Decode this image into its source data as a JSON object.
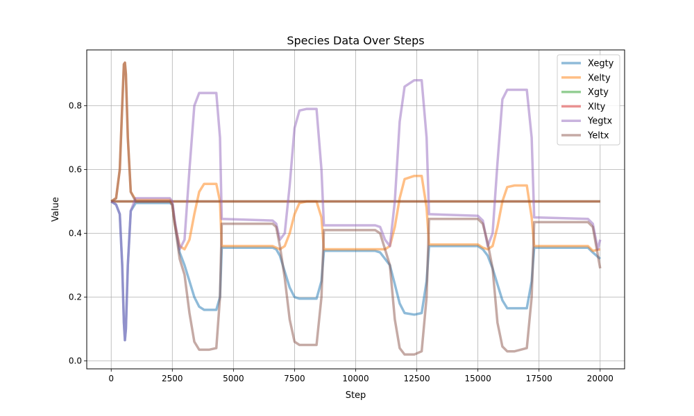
{
  "chart_data": {
    "type": "line",
    "title": "Species Data Over Steps",
    "xlabel": "Step",
    "ylabel": "Value",
    "xlim": [
      -1000,
      21000
    ],
    "ylim": [
      -0.025,
      0.975
    ],
    "xticks": [
      0,
      2500,
      5000,
      7500,
      10000,
      12500,
      15000,
      17500,
      20000
    ],
    "xtick_labels": [
      "0",
      "2500",
      "5000",
      "7500",
      "10000",
      "12500",
      "15000",
      "17500",
      "20000"
    ],
    "yticks": [
      0.0,
      0.2,
      0.4,
      0.6,
      0.8
    ],
    "ytick_labels": [
      "0.0",
      "0.2",
      "0.4",
      "0.6",
      "0.8"
    ],
    "grid": true,
    "legend_position": "upper right",
    "series": [
      {
        "name": "Xegty",
        "color": "#1f77b4",
        "x": [
          0,
          200,
          350,
          450,
          520,
          560,
          600,
          680,
          800,
          1000,
          2400,
          2500,
          2600,
          2800,
          3000,
          3200,
          3400,
          3600,
          3800,
          4000,
          4300,
          4450,
          4520,
          6600,
          6750,
          6900,
          7100,
          7300,
          7500,
          7700,
          8000,
          8400,
          8600,
          8700,
          10800,
          11000,
          11200,
          11400,
          11600,
          11800,
          12000,
          12400,
          12700,
          12900,
          13000,
          15000,
          15200,
          15400,
          15600,
          15800,
          16000,
          16200,
          16500,
          17000,
          17200,
          17300,
          19500,
          19700,
          20000
        ],
        "y": [
          0.5,
          0.49,
          0.46,
          0.3,
          0.12,
          0.065,
          0.1,
          0.3,
          0.47,
          0.495,
          0.495,
          0.49,
          0.43,
          0.34,
          0.3,
          0.25,
          0.2,
          0.17,
          0.16,
          0.16,
          0.16,
          0.2,
          0.355,
          0.355,
          0.35,
          0.33,
          0.28,
          0.23,
          0.2,
          0.195,
          0.195,
          0.195,
          0.25,
          0.345,
          0.345,
          0.34,
          0.32,
          0.3,
          0.24,
          0.18,
          0.15,
          0.145,
          0.15,
          0.25,
          0.36,
          0.36,
          0.35,
          0.33,
          0.29,
          0.24,
          0.19,
          0.165,
          0.165,
          0.165,
          0.25,
          0.355,
          0.355,
          0.34,
          0.32
        ]
      },
      {
        "name": "Xelty",
        "color": "#ff7f0e",
        "x": [
          0,
          200,
          350,
          450,
          520,
          560,
          600,
          680,
          800,
          1000,
          2400,
          2500,
          2600,
          2800,
          3000,
          3200,
          3400,
          3600,
          3800,
          4000,
          4300,
          4450,
          4520,
          6600,
          6750,
          6900,
          7100,
          7300,
          7500,
          7700,
          8000,
          8400,
          8600,
          8700,
          10800,
          11000,
          11200,
          11400,
          11600,
          11800,
          12000,
          12400,
          12700,
          12900,
          13000,
          15000,
          15200,
          15400,
          15600,
          15800,
          16000,
          16200,
          16500,
          17000,
          17200,
          17300,
          19500,
          19700,
          20000
        ],
        "y": [
          0.5,
          0.51,
          0.6,
          0.8,
          0.93,
          0.935,
          0.9,
          0.7,
          0.53,
          0.505,
          0.505,
          0.49,
          0.43,
          0.36,
          0.35,
          0.38,
          0.46,
          0.53,
          0.555,
          0.555,
          0.555,
          0.5,
          0.36,
          0.36,
          0.355,
          0.35,
          0.36,
          0.4,
          0.46,
          0.495,
          0.5,
          0.5,
          0.45,
          0.35,
          0.35,
          0.35,
          0.35,
          0.36,
          0.42,
          0.51,
          0.57,
          0.58,
          0.58,
          0.48,
          0.365,
          0.365,
          0.355,
          0.35,
          0.36,
          0.42,
          0.5,
          0.545,
          0.55,
          0.55,
          0.45,
          0.36,
          0.36,
          0.345,
          0.35
        ]
      },
      {
        "name": "Xgty",
        "color": "#2ca02c",
        "x": [
          0,
          20000
        ],
        "y": [
          0.5,
          0.5
        ]
      },
      {
        "name": "Xlty",
        "color": "#d62728",
        "x": [
          0,
          20000
        ],
        "y": [
          0.5,
          0.5
        ]
      },
      {
        "name": "Yegtx",
        "color": "#9467bd",
        "x": [
          0,
          200,
          350,
          450,
          520,
          560,
          600,
          680,
          800,
          1000,
          2400,
          2500,
          2600,
          2800,
          3000,
          3200,
          3400,
          3600,
          3800,
          4000,
          4300,
          4450,
          4520,
          6600,
          6750,
          6900,
          7100,
          7300,
          7500,
          7700,
          8000,
          8400,
          8600,
          8700,
          10800,
          11000,
          11200,
          11400,
          11600,
          11800,
          12000,
          12400,
          12700,
          12900,
          13000,
          15000,
          15200,
          15400,
          15600,
          15800,
          16000,
          16200,
          16500,
          17000,
          17200,
          17300,
          19500,
          19700,
          19900,
          20000
        ],
        "y": [
          0.5,
          0.49,
          0.46,
          0.3,
          0.12,
          0.065,
          0.1,
          0.3,
          0.47,
          0.51,
          0.51,
          0.5,
          0.44,
          0.35,
          0.38,
          0.6,
          0.8,
          0.84,
          0.84,
          0.84,
          0.84,
          0.7,
          0.445,
          0.44,
          0.43,
          0.38,
          0.4,
          0.55,
          0.73,
          0.785,
          0.79,
          0.79,
          0.6,
          0.425,
          0.425,
          0.42,
          0.38,
          0.36,
          0.5,
          0.75,
          0.86,
          0.88,
          0.88,
          0.7,
          0.46,
          0.455,
          0.44,
          0.36,
          0.4,
          0.62,
          0.82,
          0.85,
          0.85,
          0.85,
          0.7,
          0.45,
          0.445,
          0.43,
          0.35,
          0.38
        ]
      },
      {
        "name": "Yeltx",
        "color": "#8c564b",
        "x": [
          0,
          200,
          350,
          450,
          520,
          560,
          600,
          680,
          800,
          1000,
          2400,
          2500,
          2600,
          2800,
          3000,
          3200,
          3400,
          3600,
          3800,
          4000,
          4300,
          4450,
          4520,
          6600,
          6750,
          6900,
          7100,
          7300,
          7500,
          7700,
          8000,
          8400,
          8600,
          8700,
          10800,
          11000,
          11200,
          11400,
          11600,
          11800,
          12000,
          12400,
          12700,
          12900,
          13000,
          15000,
          15200,
          15400,
          15600,
          15800,
          16000,
          16200,
          16500,
          17000,
          17200,
          17300,
          19500,
          19700,
          20000
        ],
        "y": [
          0.5,
          0.51,
          0.6,
          0.8,
          0.93,
          0.935,
          0.9,
          0.7,
          0.53,
          0.5,
          0.5,
          0.49,
          0.43,
          0.32,
          0.27,
          0.15,
          0.06,
          0.035,
          0.035,
          0.035,
          0.04,
          0.2,
          0.43,
          0.43,
          0.42,
          0.36,
          0.26,
          0.13,
          0.06,
          0.05,
          0.05,
          0.05,
          0.2,
          0.41,
          0.41,
          0.4,
          0.35,
          0.3,
          0.13,
          0.04,
          0.02,
          0.02,
          0.03,
          0.2,
          0.445,
          0.445,
          0.43,
          0.37,
          0.29,
          0.12,
          0.045,
          0.03,
          0.03,
          0.04,
          0.2,
          0.435,
          0.435,
          0.42,
          0.29
        ]
      }
    ]
  }
}
